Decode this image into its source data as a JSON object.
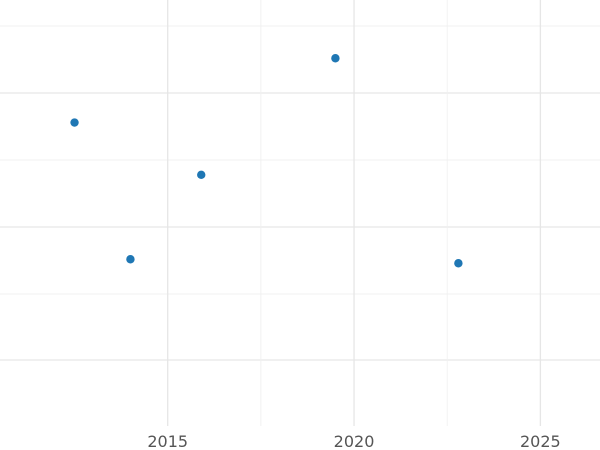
{
  "chart_data": {
    "type": "scatter",
    "title": "",
    "xlabel": "",
    "ylabel": "",
    "xlim": [
      2010.5,
      2026.6
    ],
    "ylim": [
      0,
      1
    ],
    "grid": true,
    "x_ticks": [
      2015,
      2020,
      2025
    ],
    "x_tick_labels": [
      "2015",
      "2020",
      "2025"
    ],
    "point_color": "#1f77b4",
    "points": [
      {
        "x": 2012.5,
        "y": 0.72
      },
      {
        "x": 2014.0,
        "y": 0.38
      },
      {
        "x": 2015.9,
        "y": 0.59
      },
      {
        "x": 2019.5,
        "y": 0.88
      },
      {
        "x": 2022.8,
        "y": 0.37
      }
    ]
  }
}
